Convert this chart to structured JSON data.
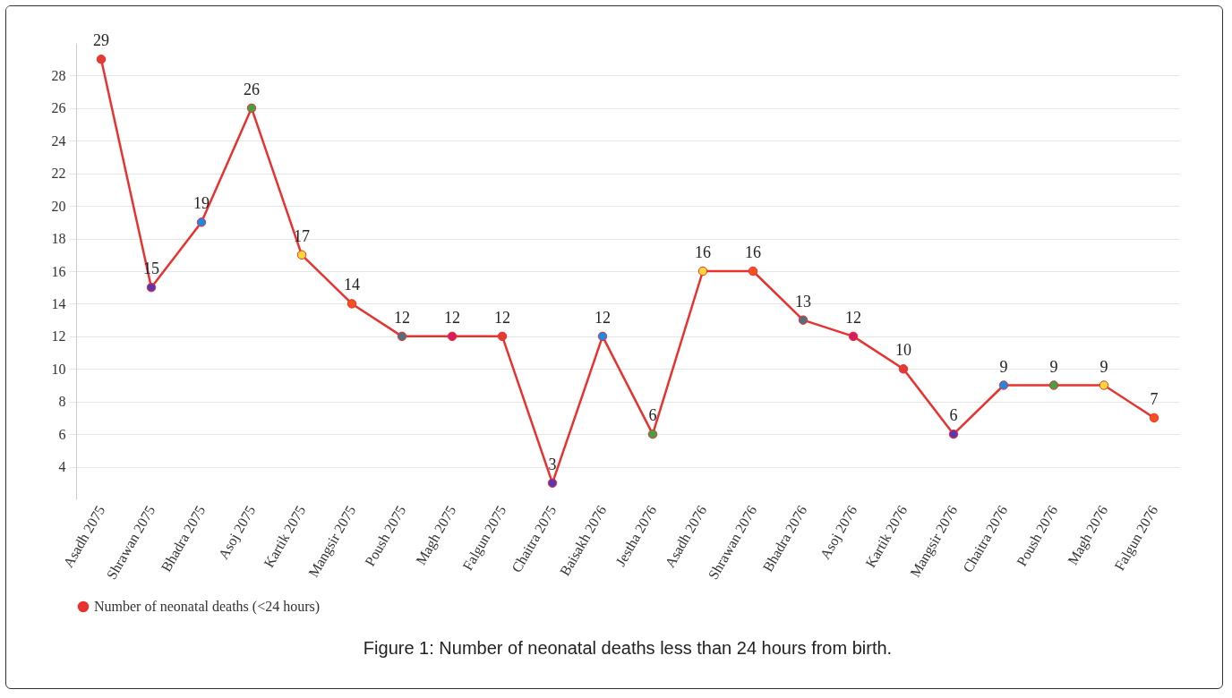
{
  "chart_data": {
    "type": "line",
    "title": "Figure 1: Number of neonatal deaths less than 24 hours from birth.",
    "categories": [
      "Asadh 2075",
      "Shrawan 2075",
      "Bhadra 2075",
      "Asoj 2075",
      "Kartik 2075",
      "Mangsir 2075",
      "Poush 2075",
      "Magh 2075",
      "Falgun 2075",
      "Chaitra 2075",
      "Baisakh 2076",
      "Jestha 2076",
      "Asadh 2076",
      "Shrawan 2076",
      "Bhadra 2076",
      "Asoj 2076",
      "Kartik 2076",
      "Mangsir 2076",
      "Chaitra 2076",
      "Poush 2076",
      "Magh 2076",
      "Falgun 2076"
    ],
    "series": [
      {
        "name": "Number of neonatal deaths (<24 hours)",
        "color": "#e8322f",
        "values": [
          29,
          15,
          19,
          26,
          17,
          14,
          12,
          12,
          12,
          3,
          12,
          6,
          16,
          16,
          13,
          12,
          10,
          6,
          9,
          9,
          9,
          7
        ],
        "colors": [
          "#e53935",
          "#5e35b1",
          "#1e88e5",
          "#43a047",
          "#fdd835",
          "#f4511e",
          "#546e7a",
          "#d81b60",
          "#e53935",
          "#5e35b1",
          "#1e88e5",
          "#43a047",
          "#fdd835",
          "#f4511e",
          "#546e7a",
          "#d81b60",
          "#e53935",
          "#5e35b1",
          "#1e88e5",
          "#43a047",
          "#fdd835",
          "#f4511e"
        ]
      }
    ],
    "ylim": [
      2,
      30
    ],
    "yticks": [
      4,
      6,
      8,
      10,
      12,
      14,
      16,
      18,
      20,
      22,
      24,
      26,
      28
    ],
    "grid": "y",
    "legend": "bottom left",
    "marker": "circle",
    "line_style": "solid",
    "data_labels": true
  }
}
